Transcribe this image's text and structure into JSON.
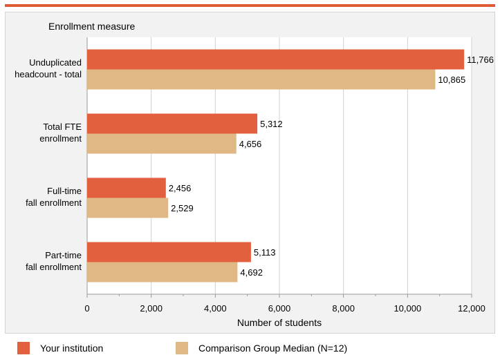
{
  "colors": {
    "accent_bar": "#e05a33",
    "series_primary": "#e2603e",
    "series_comparison": "#dfb885"
  },
  "chart_data": {
    "type": "bar",
    "orientation": "horizontal",
    "categories": [
      "Unduplicated headcount - total",
      "Total FTE enrollment",
      "Full-time fall enrollment",
      "Part-time fall enrollment"
    ],
    "category_lines": [
      [
        "Unduplicated",
        "headcount - total"
      ],
      [
        "Total FTE",
        "enrollment"
      ],
      [
        "Full-time",
        "fall enrollment"
      ],
      [
        "Part-time",
        "fall enrollment"
      ]
    ],
    "series": [
      {
        "name": "Your institution",
        "values": [
          11766,
          5312,
          2456,
          5113
        ],
        "labels": [
          "11,766",
          "5,312",
          "2,456",
          "5,113"
        ]
      },
      {
        "name": "Comparison Group Median (N=12)",
        "values": [
          10865,
          4656,
          2529,
          4692
        ],
        "labels": [
          "10,865",
          "4,656",
          "2,529",
          "4,692"
        ]
      }
    ],
    "category_axis_title": "Enrollment measure",
    "xlabel": "Number of students",
    "xlim": [
      0,
      12000
    ],
    "xticks": [
      0,
      2000,
      4000,
      6000,
      8000,
      10000,
      12000
    ],
    "xtick_labels": [
      "0",
      "2,000",
      "4,000",
      "6,000",
      "8,000",
      "10,000",
      "12,000"
    ],
    "grid": true,
    "legend_position": "bottom"
  }
}
